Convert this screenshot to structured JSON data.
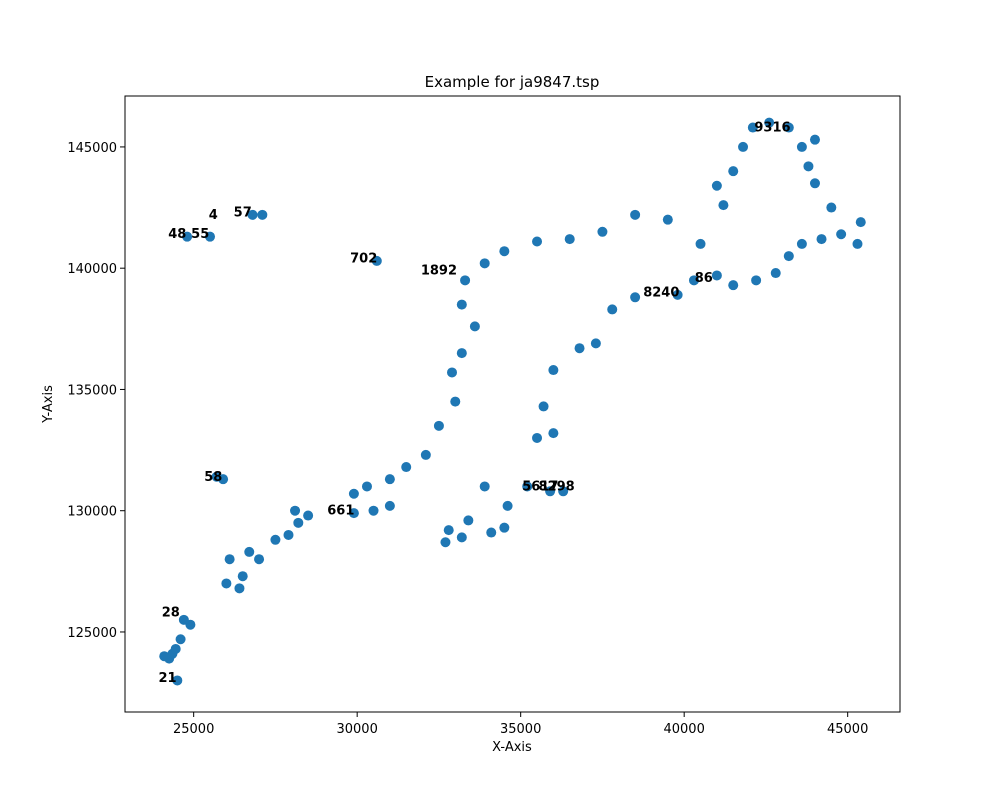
{
  "chart_data": {
    "type": "scatter",
    "title": "Example for ja9847.tsp",
    "xlabel": "X-Axis",
    "ylabel": "Y-Axis",
    "xlim": [
      22900,
      46600
    ],
    "ylim": [
      121700,
      147100
    ],
    "xticks": [
      25000,
      30000,
      35000,
      40000,
      45000
    ],
    "yticks": [
      125000,
      130000,
      135000,
      140000,
      145000
    ],
    "grid": false,
    "marker_color": "#1f77b4",
    "label_color": "#000000",
    "points": [
      {
        "x": 24500,
        "y": 123000
      },
      {
        "x": 24250,
        "y": 123900
      },
      {
        "x": 24350,
        "y": 124100
      },
      {
        "x": 24100,
        "y": 124000
      },
      {
        "x": 24450,
        "y": 124300
      },
      {
        "x": 24600,
        "y": 124700
      },
      {
        "x": 24900,
        "y": 125300
      },
      {
        "x": 24700,
        "y": 125500
      },
      {
        "x": 24800,
        "y": 141300
      },
      {
        "x": 25500,
        "y": 141300
      },
      {
        "x": 26800,
        "y": 142200
      },
      {
        "x": 27100,
        "y": 142200
      },
      {
        "x": 30600,
        "y": 140300
      },
      {
        "x": 25900,
        "y": 131300
      },
      {
        "x": 25700,
        "y": 131400
      },
      {
        "x": 26400,
        "y": 126800
      },
      {
        "x": 26000,
        "y": 127000
      },
      {
        "x": 26500,
        "y": 127300
      },
      {
        "x": 26100,
        "y": 128000
      },
      {
        "x": 26700,
        "y": 128300
      },
      {
        "x": 27000,
        "y": 128000
      },
      {
        "x": 27500,
        "y": 128800
      },
      {
        "x": 27900,
        "y": 129000
      },
      {
        "x": 28200,
        "y": 129500
      },
      {
        "x": 28500,
        "y": 129800
      },
      {
        "x": 28100,
        "y": 130000
      },
      {
        "x": 29900,
        "y": 129900
      },
      {
        "x": 31000,
        "y": 130200
      },
      {
        "x": 30500,
        "y": 130000
      },
      {
        "x": 32700,
        "y": 128700
      },
      {
        "x": 33200,
        "y": 128900
      },
      {
        "x": 34100,
        "y": 129100
      },
      {
        "x": 34500,
        "y": 129300
      },
      {
        "x": 35200,
        "y": 131000
      },
      {
        "x": 35900,
        "y": 130800
      },
      {
        "x": 36300,
        "y": 130800
      },
      {
        "x": 35500,
        "y": 133000
      },
      {
        "x": 36000,
        "y": 133200
      },
      {
        "x": 35700,
        "y": 134300
      },
      {
        "x": 36000,
        "y": 135800
      },
      {
        "x": 36800,
        "y": 136700
      },
      {
        "x": 37300,
        "y": 136900
      },
      {
        "x": 37800,
        "y": 138300
      },
      {
        "x": 38500,
        "y": 138800
      },
      {
        "x": 39800,
        "y": 138900
      },
      {
        "x": 40300,
        "y": 139500
      },
      {
        "x": 41000,
        "y": 139700
      },
      {
        "x": 41500,
        "y": 139300
      },
      {
        "x": 42200,
        "y": 139500
      },
      {
        "x": 42800,
        "y": 139800
      },
      {
        "x": 43200,
        "y": 140500
      },
      {
        "x": 43600,
        "y": 141000
      },
      {
        "x": 44200,
        "y": 141200
      },
      {
        "x": 44800,
        "y": 141400
      },
      {
        "x": 45300,
        "y": 141000
      },
      {
        "x": 45400,
        "y": 141900
      },
      {
        "x": 44500,
        "y": 142500
      },
      {
        "x": 44000,
        "y": 143500
      },
      {
        "x": 43800,
        "y": 144200
      },
      {
        "x": 43600,
        "y": 145000
      },
      {
        "x": 44000,
        "y": 145300
      },
      {
        "x": 43200,
        "y": 145800
      },
      {
        "x": 42600,
        "y": 146000
      },
      {
        "x": 42100,
        "y": 145800
      },
      {
        "x": 41800,
        "y": 145000
      },
      {
        "x": 41500,
        "y": 144000
      },
      {
        "x": 41000,
        "y": 143400
      },
      {
        "x": 41200,
        "y": 142600
      },
      {
        "x": 40500,
        "y": 141000
      },
      {
        "x": 39500,
        "y": 142000
      },
      {
        "x": 38500,
        "y": 142200
      },
      {
        "x": 37500,
        "y": 141500
      },
      {
        "x": 36500,
        "y": 141200
      },
      {
        "x": 35500,
        "y": 141100
      },
      {
        "x": 34500,
        "y": 140700
      },
      {
        "x": 33900,
        "y": 140200
      },
      {
        "x": 33300,
        "y": 139500
      },
      {
        "x": 33200,
        "y": 138500
      },
      {
        "x": 33600,
        "y": 137600
      },
      {
        "x": 33200,
        "y": 136500
      },
      {
        "x": 32900,
        "y": 135700
      },
      {
        "x": 33000,
        "y": 134500
      },
      {
        "x": 32500,
        "y": 133500
      },
      {
        "x": 32100,
        "y": 132300
      },
      {
        "x": 31500,
        "y": 131800
      },
      {
        "x": 31000,
        "y": 131300
      },
      {
        "x": 30300,
        "y": 131000
      },
      {
        "x": 29900,
        "y": 130700
      },
      {
        "x": 32800,
        "y": 129200
      },
      {
        "x": 33400,
        "y": 129600
      },
      {
        "x": 33900,
        "y": 131000
      },
      {
        "x": 34600,
        "y": 130200
      }
    ],
    "labels": [
      {
        "text": "9316",
        "x": 42700,
        "y": 145800
      },
      {
        "text": "8240",
        "x": 39300,
        "y": 139000
      },
      {
        "text": "702",
        "x": 30200,
        "y": 140400
      },
      {
        "text": "48",
        "x": 24500,
        "y": 141400
      },
      {
        "text": "55",
        "x": 25200,
        "y": 141400
      },
      {
        "text": "4",
        "x": 25600,
        "y": 142200
      },
      {
        "text": "57",
        "x": 26500,
        "y": 142300
      },
      {
        "text": "58",
        "x": 25600,
        "y": 131400
      },
      {
        "text": "28",
        "x": 24300,
        "y": 125800
      },
      {
        "text": "21",
        "x": 24200,
        "y": 123100
      },
      {
        "text": "661",
        "x": 29500,
        "y": 130000
      },
      {
        "text": "5617",
        "x": 35600,
        "y": 131000
      },
      {
        "text": "8298",
        "x": 36100,
        "y": 131000
      },
      {
        "text": "86",
        "x": 40600,
        "y": 139600
      },
      {
        "text": "1892",
        "x": 32500,
        "y": 139900
      }
    ]
  }
}
